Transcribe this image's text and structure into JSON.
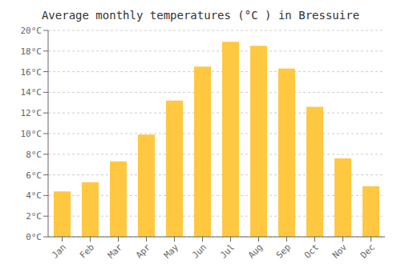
{
  "chart_data": {
    "type": "bar",
    "title": "Average monthly temperatures (°C ) in Bressuire",
    "categories": [
      "Jan",
      "Feb",
      "Mar",
      "Apr",
      "May",
      "Jun",
      "Jul",
      "Aug",
      "Sep",
      "Oct",
      "Nov",
      "Dec"
    ],
    "values": [
      4.4,
      5.3,
      7.3,
      9.9,
      13.2,
      16.5,
      18.9,
      18.5,
      16.3,
      12.6,
      7.6,
      4.9
    ],
    "color": "#FFC840",
    "ylim": [
      0,
      20
    ],
    "yticks": [
      {
        "value": 0,
        "label": "0°C"
      },
      {
        "value": 2,
        "label": "2°C"
      },
      {
        "value": 4,
        "label": "4°C"
      },
      {
        "value": 6,
        "label": "6°C"
      },
      {
        "value": 8,
        "label": "8°C"
      },
      {
        "value": 10,
        "label": "10°C"
      },
      {
        "value": 12,
        "label": "12°C"
      },
      {
        "value": 14,
        "label": "14°C"
      },
      {
        "value": 16,
        "label": "16°C"
      },
      {
        "value": 18,
        "label": "18°C"
      },
      {
        "value": 20,
        "label": "20°C"
      }
    ],
    "grid": "y"
  }
}
